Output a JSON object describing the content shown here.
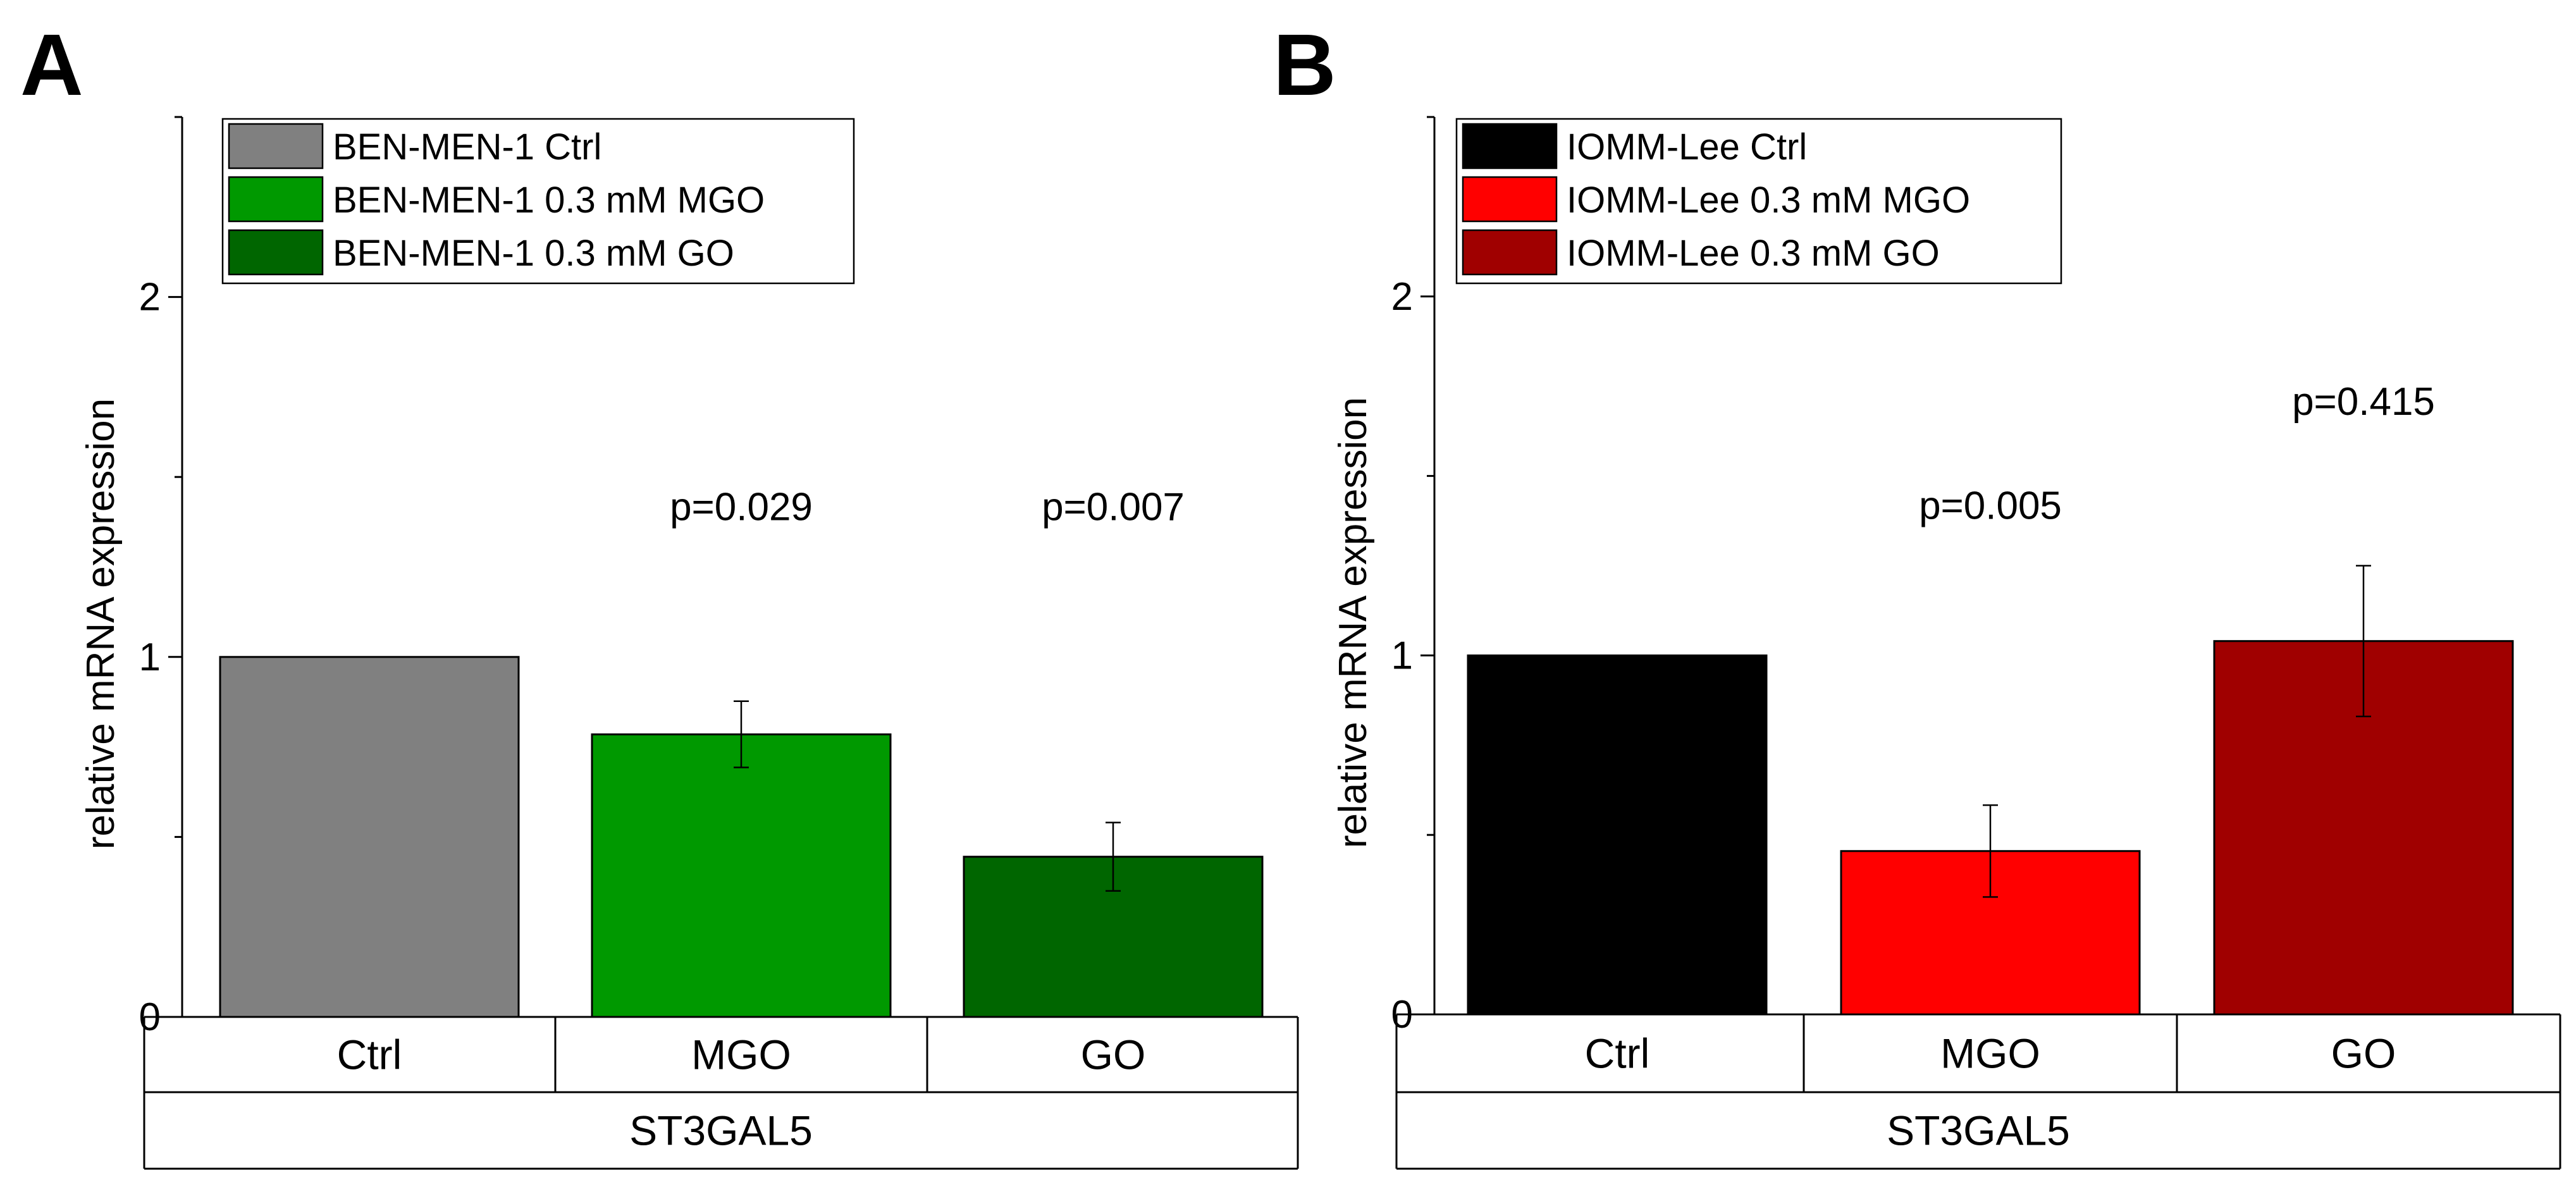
{
  "figure": {
    "panels": [
      "A",
      "B"
    ]
  },
  "chart_data": [
    {
      "panel": "A",
      "type": "bar",
      "title": "",
      "xlabel": "",
      "ylabel": "relative mRNA expression",
      "ylim": [
        0,
        2.5
      ],
      "yticks": [
        0,
        1,
        2
      ],
      "categories": [
        "Ctrl",
        "MGO",
        "GO"
      ],
      "group_label": "ST3GAL5",
      "values": [
        1.0,
        0.785,
        0.445
      ],
      "errors": [
        null,
        0.092,
        0.095
      ],
      "p_values": [
        "",
        "p=0.029",
        "p=0.007"
      ],
      "colors": [
        "#808080",
        "#009900",
        "#006600"
      ],
      "legend": {
        "placement": "top-left",
        "entries": [
          {
            "label": "BEN-MEN-1 Ctrl",
            "color": "#808080"
          },
          {
            "label": "BEN-MEN-1 0.3 mM MGO",
            "color": "#009900"
          },
          {
            "label": "BEN-MEN-1 0.3 mM GO",
            "color": "#006600"
          }
        ]
      }
    },
    {
      "panel": "B",
      "type": "bar",
      "title": "",
      "xlabel": "",
      "ylabel": "relative mRNA expression",
      "ylim": [
        0,
        2.5
      ],
      "yticks": [
        0,
        1,
        2
      ],
      "categories": [
        "Ctrl",
        "MGO",
        "GO"
      ],
      "group_label": "ST3GAL5",
      "values": [
        1.0,
        0.455,
        1.04
      ],
      "errors": [
        null,
        0.128,
        0.21
      ],
      "p_values": [
        "",
        "p=0.005",
        "p=0.415"
      ],
      "colors": [
        "#000000",
        "#ff0000",
        "#a00000"
      ],
      "legend": {
        "placement": "top-left",
        "entries": [
          {
            "label": "IOMM-Lee Ctrl",
            "color": "#000000"
          },
          {
            "label": "IOMM-Lee 0.3 mM MGO",
            "color": "#ff0000"
          },
          {
            "label": "IOMM-Lee 0.3 mM GO",
            "color": "#a00000"
          }
        ]
      }
    }
  ]
}
